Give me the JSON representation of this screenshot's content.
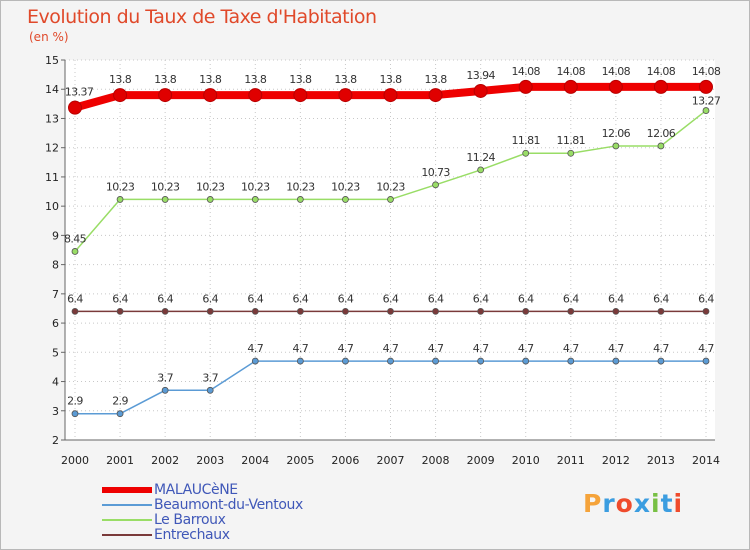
{
  "title": "Evolution du Taux de Taxe d'Habitation",
  "unit": "(en %)",
  "brand": {
    "text": "Proxiti",
    "colors": [
      "#f5a33a",
      "#3b9de0",
      "#ef4b2c",
      "#3b9de0",
      "#78c044",
      "#3b9de0",
      "#ef4b2c"
    ]
  },
  "chart_data": {
    "type": "line",
    "x": [
      "2000",
      "2001",
      "2002",
      "2003",
      "2004",
      "2005",
      "2006",
      "2007",
      "2008",
      "2009",
      "2010",
      "2011",
      "2012",
      "2013",
      "2014"
    ],
    "ylim": [
      2,
      15
    ],
    "yticks": [
      "2",
      "3",
      "4",
      "5",
      "6",
      "7",
      "8",
      "9",
      "10",
      "11",
      "12",
      "13",
      "14",
      "15"
    ],
    "grid": true,
    "series": [
      {
        "name": "MALAUCèNE",
        "color": "#ee0000",
        "emphasis": true,
        "values": [
          13.37,
          13.8,
          13.8,
          13.8,
          13.8,
          13.8,
          13.8,
          13.8,
          13.8,
          13.94,
          14.08,
          14.08,
          14.08,
          14.08,
          14.08
        ],
        "labels": [
          "13.37",
          "13.8",
          "13.8",
          "13.8",
          "13.8",
          "13.8",
          "13.8",
          "13.8",
          "13.8",
          "13.94",
          "14.08",
          "14.08",
          "14.08",
          "14.08",
          "14.08"
        ]
      },
      {
        "name": "Beaumont-du-Ventoux",
        "color": "#5b9bd5",
        "values": [
          2.9,
          2.9,
          3.7,
          3.7,
          4.7,
          4.7,
          4.7,
          4.7,
          4.7,
          4.7,
          4.7,
          4.7,
          4.7,
          4.7,
          4.7
        ],
        "labels": [
          "2.9",
          "2.9",
          "3.7",
          "3.7",
          "4.7",
          "4.7",
          "4.7",
          "4.7",
          "4.7",
          "4.7",
          "4.7",
          "4.7",
          "4.7",
          "4.7",
          "4.7"
        ]
      },
      {
        "name": "Le Barroux",
        "color": "#99dd66",
        "values": [
          8.45,
          10.23,
          10.23,
          10.23,
          10.23,
          10.23,
          10.23,
          10.23,
          10.73,
          11.24,
          11.81,
          11.81,
          12.06,
          12.06,
          13.27
        ],
        "labels": [
          "8.45",
          "10.23",
          "10.23",
          "10.23",
          "10.23",
          "10.23",
          "10.23",
          "10.23",
          "10.73",
          "11.24",
          "11.81",
          "11.81",
          "12.06",
          "12.06",
          "13.27"
        ]
      },
      {
        "name": "Entrechaux",
        "color": "#7a3a3a",
        "values": [
          6.4,
          6.4,
          6.4,
          6.4,
          6.4,
          6.4,
          6.4,
          6.4,
          6.4,
          6.4,
          6.4,
          6.4,
          6.4,
          6.4,
          6.4
        ],
        "labels": [
          "6.4",
          "6.4",
          "6.4",
          "6.4",
          "6.4",
          "6.4",
          "6.4",
          "6.4",
          "6.4",
          "6.4",
          "6.4",
          "6.4",
          "6.4",
          "6.4",
          "6.4"
        ]
      }
    ]
  }
}
